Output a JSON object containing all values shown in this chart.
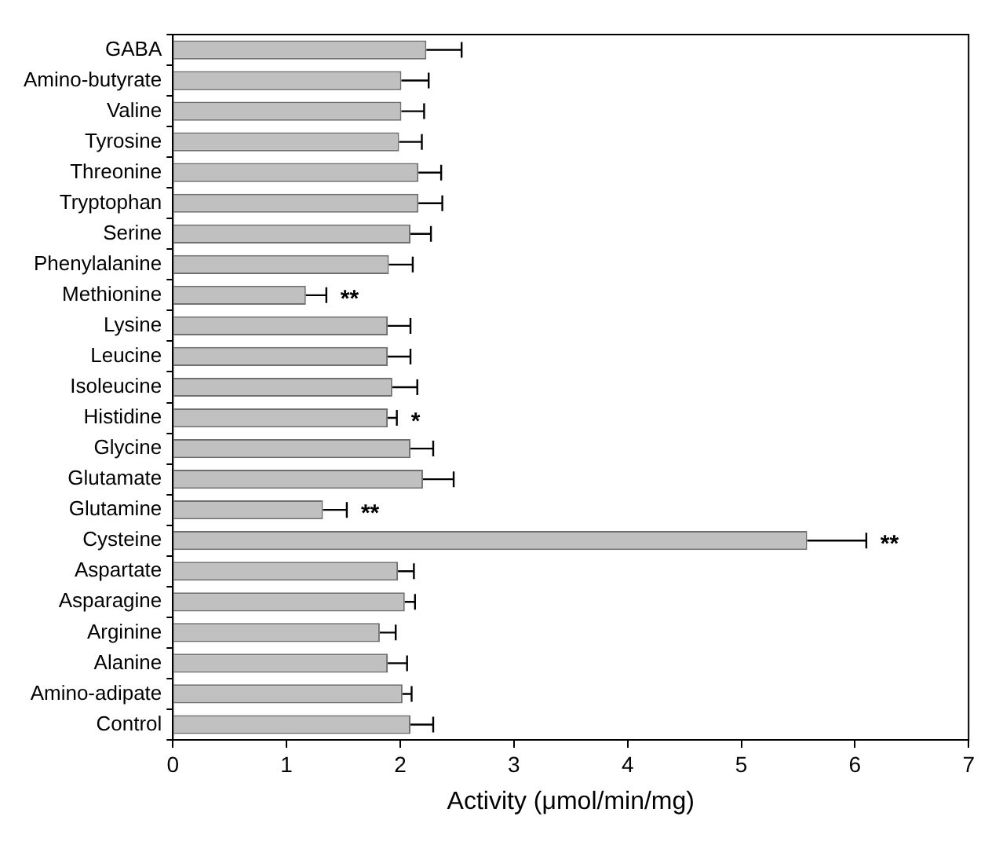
{
  "chart_data": {
    "type": "bar",
    "orientation": "horizontal",
    "xlabel": "Activity (μmol/min/mg)",
    "categories": [
      "GABA",
      "Amino-butyrate",
      "Valine",
      "Tyrosine",
      "Threonine",
      "Tryptophan",
      "Serine",
      "Phenylalanine",
      "Methionine",
      "Lysine",
      "Leucine",
      "Isoleucine",
      "Histidine",
      "Glycine",
      "Glutamate",
      "Glutamine",
      "Cysteine",
      "Aspartate",
      "Asparagine",
      "Arginine",
      "Alanine",
      "Amino-adipate",
      "Control"
    ],
    "values": [
      2.23,
      2.01,
      2.01,
      1.99,
      2.16,
      2.16,
      2.09,
      1.9,
      1.17,
      1.89,
      1.89,
      1.93,
      1.89,
      2.09,
      2.2,
      1.32,
      5.58,
      1.98,
      2.04,
      1.82,
      1.89,
      2.02,
      2.09
    ],
    "errors": [
      [
        2.23,
        2.54
      ],
      [
        2.01,
        2.25
      ],
      [
        2.01,
        2.21
      ],
      [
        1.99,
        2.19
      ],
      [
        2.16,
        2.36
      ],
      [
        2.16,
        2.37
      ],
      [
        2.09,
        2.27
      ],
      [
        1.9,
        2.11
      ],
      [
        1.17,
        1.35
      ],
      [
        1.89,
        2.09
      ],
      [
        1.89,
        2.09
      ],
      [
        1.93,
        2.15
      ],
      [
        1.89,
        1.97
      ],
      [
        2.09,
        2.29
      ],
      [
        2.2,
        2.47
      ],
      [
        1.32,
        1.53
      ],
      [
        5.58,
        6.1
      ],
      [
        1.98,
        2.12
      ],
      [
        2.04,
        2.13
      ],
      [
        1.82,
        1.96
      ],
      [
        1.89,
        2.06
      ],
      [
        2.02,
        2.1
      ],
      [
        2.09,
        2.29
      ]
    ],
    "color": "#c0c0c0",
    "xlim": [
      0,
      7
    ],
    "xticks": [
      0,
      1,
      2,
      3,
      4,
      5,
      6,
      7
    ],
    "annotations": [
      {
        "text": "**",
        "x": 1.35,
        "y": "Methionine"
      },
      {
        "text": "*",
        "x": 1.97,
        "y": "Histidine"
      },
      {
        "text": "**",
        "x": 1.53,
        "y": "Glutamine"
      },
      {
        "text": "**",
        "x": 6.1,
        "y": "Cysteine"
      }
    ],
    "grid": false,
    "legend": false
  }
}
